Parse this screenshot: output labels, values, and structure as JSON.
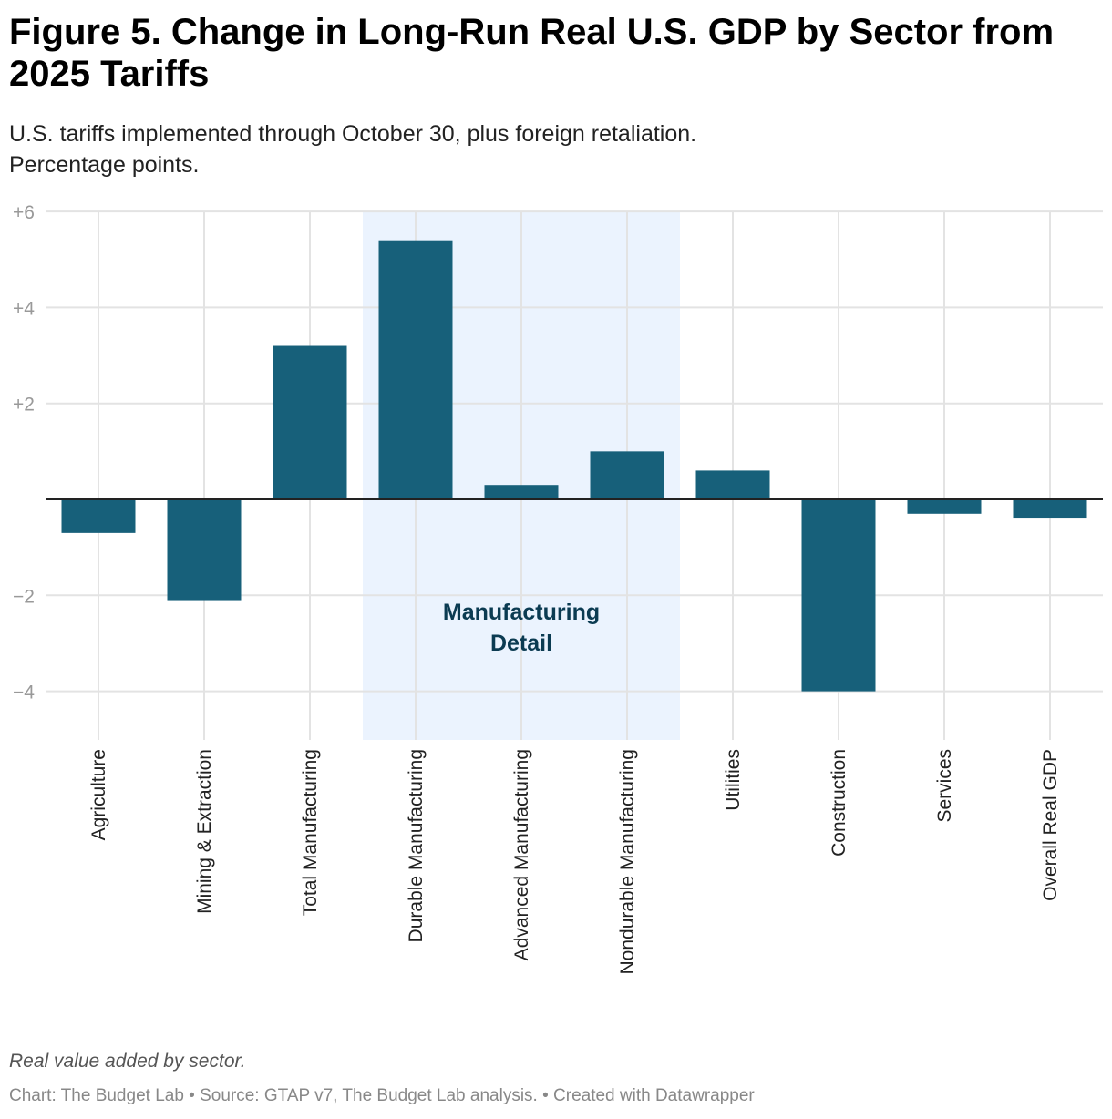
{
  "title": "Figure 5. Change in Long-Run Real U.S. GDP by Sector from 2025 Tariffs",
  "subtitle_lines": [
    "U.S. tariffs implemented through October 30, plus foreign retaliation.",
    "Percentage points."
  ],
  "notes": "Real value added by sector.",
  "credit": "Chart: The Budget Lab • Source: GTAP v7, The Budget Lab analysis. • Created with Datawrapper",
  "chart_data": {
    "type": "bar",
    "categories": [
      "Agriculture",
      "Mining & Extraction",
      "Total Manufacturing",
      "Durable Manufacturing",
      "Advanced Manufacturing",
      "Nondurable Manufacturing",
      "Utilities",
      "Construction",
      "Services",
      "Overall Real GDP"
    ],
    "values": [
      -0.7,
      -2.1,
      3.2,
      5.4,
      0.3,
      1.0,
      0.6,
      -4.0,
      -0.3,
      -0.4
    ],
    "ylim": [
      -5,
      6
    ],
    "yticks": [
      6,
      4,
      2,
      -2,
      -4
    ],
    "ytick_labels": [
      "+6",
      "+4",
      "+2",
      "−2",
      "−4"
    ],
    "grid": true,
    "bar_color": "#17607a",
    "highlight": {
      "label_lines": [
        "Manufacturing",
        "Detail"
      ],
      "categories": [
        "Durable Manufacturing",
        "Advanced Manufacturing",
        "Nondurable Manufacturing"
      ],
      "color": "#ebf3fe",
      "label_color": "#0b3b52"
    }
  }
}
